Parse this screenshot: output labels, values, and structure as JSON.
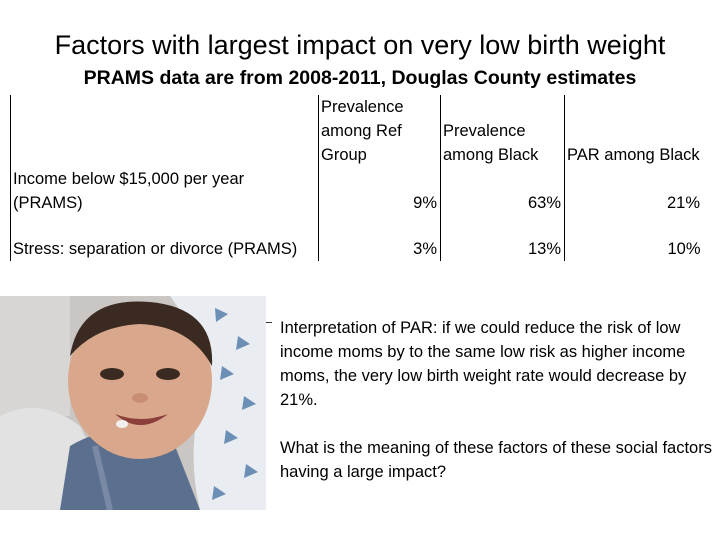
{
  "title": "Factors with largest impact on very low birth weight",
  "subtitle": "PRAMS data are from 2008-2011,  Douglas County estimates",
  "table": {
    "headers": [
      "",
      "Prevalence among Ref Group",
      "Prevalence among Black",
      "PAR among Black"
    ],
    "rows": [
      {
        "label": "Income below $15,000 per year (PRAMS)",
        "ref": "9%",
        "black": "63%",
        "par": "21%"
      },
      {
        "label": "Stress: separation or divorce (PRAMS)",
        "ref": "3%",
        "black": "13%",
        "par": "10%"
      }
    ]
  },
  "interpretation": "Interpretation of PAR: if we could reduce the risk of low income moms by to the same low risk as higher income moms, the very low birth weight rate would decrease by 21%.",
  "question": "What is the meaning of these factors  of these social factors having a large impact?",
  "colors": {
    "text": "#000000",
    "background": "#ffffff"
  }
}
